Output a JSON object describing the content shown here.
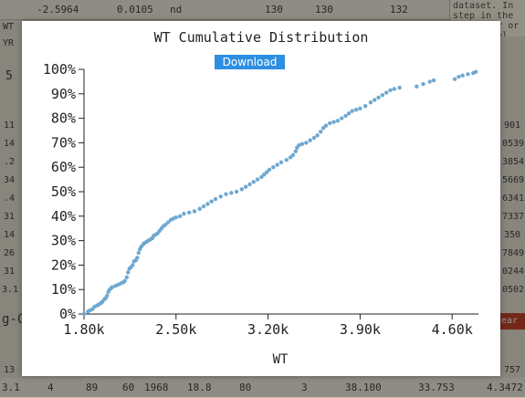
{
  "background": {
    "top_row": [
      "-2.5964",
      "0.0105",
      "nd",
      "130",
      "130",
      "132"
    ],
    "bottom_row": [
      "3.1",
      "4",
      "89",
      "60",
      "1968",
      "18.8",
      "80",
      "3",
      "38.100",
      "33.753",
      "4.3472"
    ],
    "left_cells": [
      "WT",
      "YR",
      "5",
      "11",
      "14",
      ".2",
      "34",
      ".4",
      "31",
      "14",
      "26",
      "31",
      "3.1",
      "g-C",
      "13"
    ],
    "right_cells": [
      "901",
      "0539",
      "3854",
      "5669",
      "6341",
      "7337",
      "350",
      "7849",
      "0244",
      "0502",
      "757"
    ],
    "note_text": "dataset. In step in the w other r or re y model",
    "clear_label": "ear"
  },
  "modal": {
    "title": "WT Cumulative Distribution",
    "download_label": "Download"
  },
  "chart_data": {
    "type": "scatter",
    "title": "WT Cumulative Distribution",
    "xlabel": "WT",
    "ylabel": "",
    "xlim": [
      1800,
      4800
    ],
    "ylim": [
      0,
      1
    ],
    "x_ticks": [
      "1.80k",
      "2.50k",
      "3.20k",
      "3.90k",
      "4.60k"
    ],
    "x_tick_values": [
      1800,
      2500,
      3200,
      3900,
      4600
    ],
    "y_ticks": [
      "0%",
      "10%",
      "20%",
      "30%",
      "40%",
      "50%",
      "60%",
      "70%",
      "80%",
      "90%",
      "100%"
    ],
    "color": "#6fa8d0",
    "points": [
      [
        1800,
        0.0
      ],
      [
        1830,
        0.01
      ],
      [
        1845,
        0.015
      ],
      [
        1865,
        0.02
      ],
      [
        1880,
        0.03
      ],
      [
        1900,
        0.035
      ],
      [
        1915,
        0.04
      ],
      [
        1930,
        0.045
      ],
      [
        1940,
        0.05
      ],
      [
        1955,
        0.06
      ],
      [
        1965,
        0.065
      ],
      [
        1975,
        0.075
      ],
      [
        1985,
        0.09
      ],
      [
        1995,
        0.1
      ],
      [
        2005,
        0.105
      ],
      [
        2015,
        0.11
      ],
      [
        2040,
        0.115
      ],
      [
        2060,
        0.12
      ],
      [
        2080,
        0.125
      ],
      [
        2100,
        0.13
      ],
      [
        2110,
        0.135
      ],
      [
        2125,
        0.15
      ],
      [
        2135,
        0.17
      ],
      [
        2145,
        0.185
      ],
      [
        2155,
        0.19
      ],
      [
        2170,
        0.2
      ],
      [
        2180,
        0.215
      ],
      [
        2195,
        0.22
      ],
      [
        2205,
        0.23
      ],
      [
        2215,
        0.25
      ],
      [
        2225,
        0.265
      ],
      [
        2235,
        0.275
      ],
      [
        2250,
        0.285
      ],
      [
        2260,
        0.29
      ],
      [
        2275,
        0.295
      ],
      [
        2290,
        0.3
      ],
      [
        2305,
        0.305
      ],
      [
        2320,
        0.31
      ],
      [
        2330,
        0.32
      ],
      [
        2345,
        0.325
      ],
      [
        2360,
        0.33
      ],
      [
        2375,
        0.34
      ],
      [
        2390,
        0.35
      ],
      [
        2405,
        0.36
      ],
      [
        2420,
        0.365
      ],
      [
        2440,
        0.375
      ],
      [
        2460,
        0.385
      ],
      [
        2480,
        0.39
      ],
      [
        2500,
        0.395
      ],
      [
        2530,
        0.4
      ],
      [
        2560,
        0.41
      ],
      [
        2600,
        0.415
      ],
      [
        2640,
        0.42
      ],
      [
        2680,
        0.43
      ],
      [
        2710,
        0.44
      ],
      [
        2740,
        0.45
      ],
      [
        2770,
        0.46
      ],
      [
        2800,
        0.47
      ],
      [
        2840,
        0.48
      ],
      [
        2880,
        0.49
      ],
      [
        2920,
        0.495
      ],
      [
        2960,
        0.5
      ],
      [
        3000,
        0.51
      ],
      [
        3030,
        0.52
      ],
      [
        3060,
        0.53
      ],
      [
        3090,
        0.54
      ],
      [
        3120,
        0.55
      ],
      [
        3150,
        0.56
      ],
      [
        3170,
        0.57
      ],
      [
        3190,
        0.58
      ],
      [
        3210,
        0.59
      ],
      [
        3240,
        0.6
      ],
      [
        3270,
        0.61
      ],
      [
        3300,
        0.62
      ],
      [
        3340,
        0.63
      ],
      [
        3370,
        0.64
      ],
      [
        3390,
        0.65
      ],
      [
        3410,
        0.665
      ],
      [
        3420,
        0.68
      ],
      [
        3435,
        0.69
      ],
      [
        3460,
        0.695
      ],
      [
        3490,
        0.7
      ],
      [
        3520,
        0.71
      ],
      [
        3550,
        0.72
      ],
      [
        3575,
        0.73
      ],
      [
        3600,
        0.745
      ],
      [
        3620,
        0.76
      ],
      [
        3640,
        0.77
      ],
      [
        3670,
        0.78
      ],
      [
        3700,
        0.785
      ],
      [
        3730,
        0.79
      ],
      [
        3760,
        0.8
      ],
      [
        3790,
        0.81
      ],
      [
        3815,
        0.82
      ],
      [
        3840,
        0.83
      ],
      [
        3870,
        0.835
      ],
      [
        3900,
        0.84
      ],
      [
        3940,
        0.85
      ],
      [
        3980,
        0.865
      ],
      [
        4010,
        0.875
      ],
      [
        4040,
        0.885
      ],
      [
        4070,
        0.895
      ],
      [
        4100,
        0.905
      ],
      [
        4130,
        0.915
      ],
      [
        4160,
        0.92
      ],
      [
        4200,
        0.925
      ],
      [
        4330,
        0.93
      ],
      [
        4380,
        0.94
      ],
      [
        4430,
        0.95
      ],
      [
        4460,
        0.955
      ],
      [
        4620,
        0.96
      ],
      [
        4650,
        0.97
      ],
      [
        4680,
        0.975
      ],
      [
        4720,
        0.98
      ],
      [
        4760,
        0.985
      ],
      [
        4780,
        0.99
      ]
    ]
  }
}
